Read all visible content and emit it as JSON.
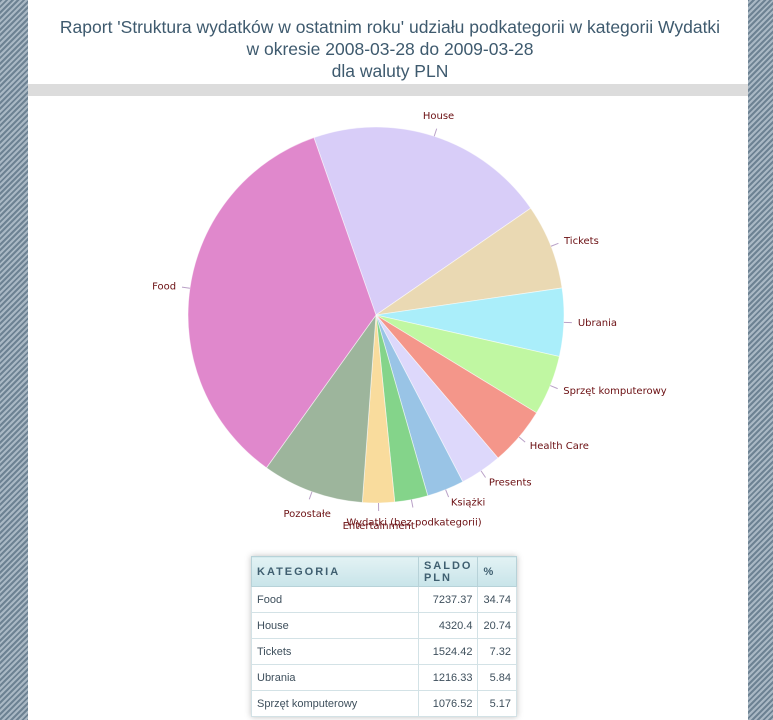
{
  "title": {
    "line1": "Raport 'Struktura wydatków w ostatnim roku' udziału podkategorii w kategorii Wydatki",
    "line2": "w okresie 2008-03-28 do 2009-03-28",
    "line3": "dla waluty PLN"
  },
  "chart_data": {
    "type": "pie",
    "slices": [
      {
        "label": "House",
        "percent": 20.74,
        "color": "#d8cdf8"
      },
      {
        "label": "Tickets",
        "percent": 7.32,
        "color": "#ead9b3"
      },
      {
        "label": "Ubrania",
        "percent": 5.84,
        "color": "#aaeefa"
      },
      {
        "label": "Sprzęt komputerowy",
        "percent": 5.17,
        "color": "#c0f7a2"
      },
      {
        "label": "Health Care",
        "percent": 5.05,
        "color": "#f4968a"
      },
      {
        "label": "Presents",
        "percent": 3.6,
        "color": "#ddd8fb"
      },
      {
        "label": "Książki",
        "percent": 3.2,
        "color": "#99c4e6"
      },
      {
        "label": "Wydatki (bez podkategorii)",
        "percent": 2.85,
        "color": "#84d48a"
      },
      {
        "label": "Entertainment",
        "percent": 2.75,
        "color": "#f9dc9d"
      },
      {
        "label": "Pozostałe",
        "percent": 8.74,
        "color": "#9db59c"
      },
      {
        "label": "Food",
        "percent": 34.74,
        "color": "#e088cc"
      }
    ]
  },
  "table": {
    "headers": {
      "category": "KATEGORIA",
      "saldo": "SALDO PLN",
      "percent": "%"
    },
    "rows": [
      {
        "category": "Food",
        "saldo": "7237.37",
        "percent": "34.74"
      },
      {
        "category": "House",
        "saldo": "4320.4",
        "percent": "20.74"
      },
      {
        "category": "Tickets",
        "saldo": "1524.42",
        "percent": "7.32"
      },
      {
        "category": "Ubrania",
        "saldo": "1216.33",
        "percent": "5.84"
      },
      {
        "category": "Sprzęt komputerowy",
        "saldo": "1076.52",
        "percent": "5.17"
      }
    ]
  }
}
